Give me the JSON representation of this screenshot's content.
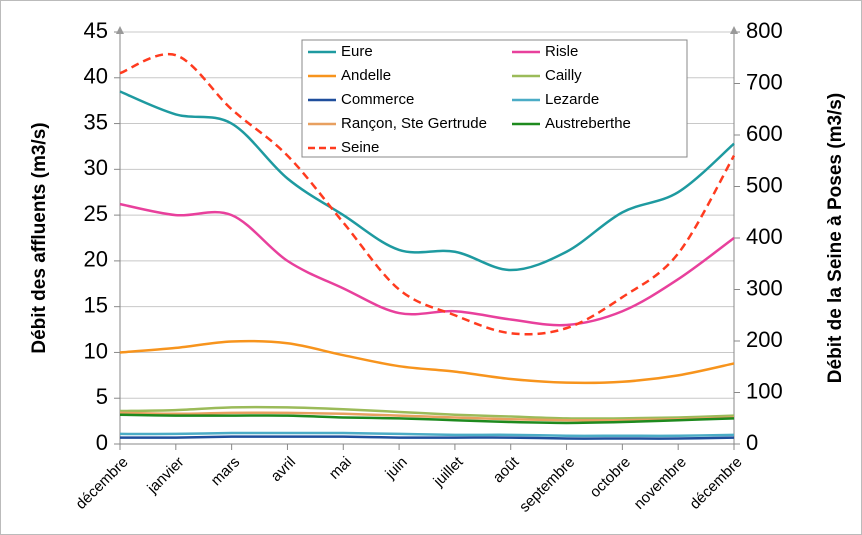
{
  "chart_data": {
    "type": "line",
    "categories": [
      "décembre",
      "janvier",
      "mars",
      "avril",
      "mai",
      "juin",
      "juillet",
      "août",
      "septembre",
      "octobre",
      "novembre",
      "décembre"
    ],
    "y_label": "Débit des affluents (m3/s)",
    "y2_label": "Débit de la Seine à Poses (m3/s)",
    "ylim": [
      0,
      45
    ],
    "yticks": [
      0,
      5,
      10,
      15,
      20,
      25,
      30,
      35,
      40,
      45
    ],
    "y2lim": [
      0,
      800
    ],
    "y2ticks": [
      0,
      100,
      200,
      300,
      400,
      500,
      600,
      700,
      800
    ],
    "grid": true,
    "legend": "top",
    "series": [
      {
        "name": "Eure",
        "color": "#1e9aa0",
        "values": [
          38.5,
          36,
          35,
          29,
          25,
          21.2,
          21,
          19,
          21,
          25.3,
          27.5,
          32.8
        ]
      },
      {
        "name": "Risle",
        "color": "#e8409c",
        "values": [
          26.2,
          25,
          25,
          20,
          17,
          14.3,
          14.5,
          13.6,
          13,
          14.5,
          18,
          22.5
        ]
      },
      {
        "name": "Andelle",
        "color": "#f7941d",
        "values": [
          10,
          10.5,
          11.2,
          11,
          9.7,
          8.5,
          7.9,
          7.1,
          6.7,
          6.8,
          7.5,
          8.8
        ]
      },
      {
        "name": "Cailly",
        "color": "#9bbb59",
        "values": [
          3.6,
          3.7,
          4,
          4,
          3.8,
          3.5,
          3.2,
          3,
          2.8,
          2.8,
          2.9,
          3.1
        ]
      },
      {
        "name": "Commerce",
        "color": "#1f4e9c",
        "values": [
          0.7,
          0.7,
          0.8,
          0.8,
          0.8,
          0.7,
          0.7,
          0.7,
          0.6,
          0.6,
          0.6,
          0.7
        ]
      },
      {
        "name": "Lezarde",
        "color": "#4bacc6",
        "values": [
          1.1,
          1.1,
          1.2,
          1.2,
          1.2,
          1.1,
          1,
          1,
          0.9,
          0.9,
          0.9,
          1
        ]
      },
      {
        "name": "Rançon, Ste Gertrude",
        "color": "#e8a060",
        "values": [
          3.4,
          3.3,
          3.4,
          3.4,
          3.3,
          3.1,
          2.9,
          2.7,
          2.6,
          2.6,
          2.7,
          2.9
        ]
      },
      {
        "name": "Austreberthe",
        "color": "#1e8a1e",
        "values": [
          3.2,
          3.1,
          3.1,
          3.1,
          2.9,
          2.8,
          2.6,
          2.4,
          2.3,
          2.4,
          2.6,
          2.8
        ]
      },
      {
        "name": "Seine",
        "color": "#ff3b1f",
        "dashed": true,
        "axis": "y2",
        "values": [
          720,
          755,
          650,
          560,
          430,
          300,
          250,
          215,
          225,
          285,
          370,
          560
        ]
      }
    ]
  }
}
